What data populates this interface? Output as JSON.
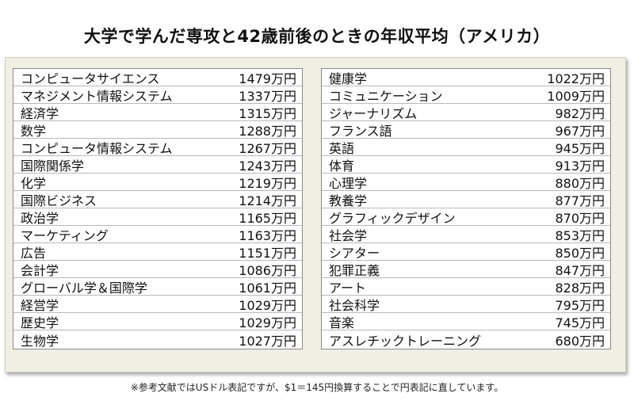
{
  "title": "大学で学んだ専攻と42歳前後のときの年収平均（アメリカ）",
  "left_table": [
    {
      "major": "コンピュータサイエンス",
      "income": "1479万円"
    },
    {
      "major": "マネジメント情報システム",
      "income": "1337万円"
    },
    {
      "major": "経済学",
      "income": "1315万円"
    },
    {
      "major": "数学",
      "income": "1288万円"
    },
    {
      "major": "コンピュータ情報システム",
      "income": "1267万円"
    },
    {
      "major": "国際関係学",
      "income": "1243万円"
    },
    {
      "major": "化学",
      "income": "1219万円"
    },
    {
      "major": "国際ビジネス",
      "income": "1214万円"
    },
    {
      "major": "政治学",
      "income": "1165万円"
    },
    {
      "major": "マーケティング",
      "income": "1163万円"
    },
    {
      "major": "広告",
      "income": "1151万円"
    },
    {
      "major": "会計学",
      "income": "1086万円"
    },
    {
      "major": "グローバル学＆国際学",
      "income": "1061万円"
    },
    {
      "major": "経営学",
      "income": "1029万円"
    },
    {
      "major": "歴史学",
      "income": "1029万円"
    },
    {
      "major": "生物学",
      "income": "1027万円"
    }
  ],
  "right_table": [
    {
      "major": "健康学",
      "income": "1022万円"
    },
    {
      "major": "コミュニケーション",
      "income": "1009万円"
    },
    {
      "major": "ジャーナリズム",
      "income": "982万円"
    },
    {
      "major": "フランス語",
      "income": "967万円"
    },
    {
      "major": "英語",
      "income": "945万円"
    },
    {
      "major": "体育",
      "income": "913万円"
    },
    {
      "major": "心理学",
      "income": "880万円"
    },
    {
      "major": "教養学",
      "income": "877万円"
    },
    {
      "major": "グラフィックデザイン",
      "income": "870万円"
    },
    {
      "major": "社会学",
      "income": "853万円"
    },
    {
      "major": "シアター",
      "income": "850万円"
    },
    {
      "major": "犯罪正義",
      "income": "847万円"
    },
    {
      "major": "アート",
      "income": "828万円"
    },
    {
      "major": "社会科学",
      "income": "795万円"
    },
    {
      "major": "音楽",
      "income": "745万円"
    },
    {
      "major": "アスレチックトレーニング",
      "income": "680万円"
    }
  ],
  "footnote": "※参考文献ではUSドル表記ですが、$1＝145円換算することで円表記に直しています。"
}
